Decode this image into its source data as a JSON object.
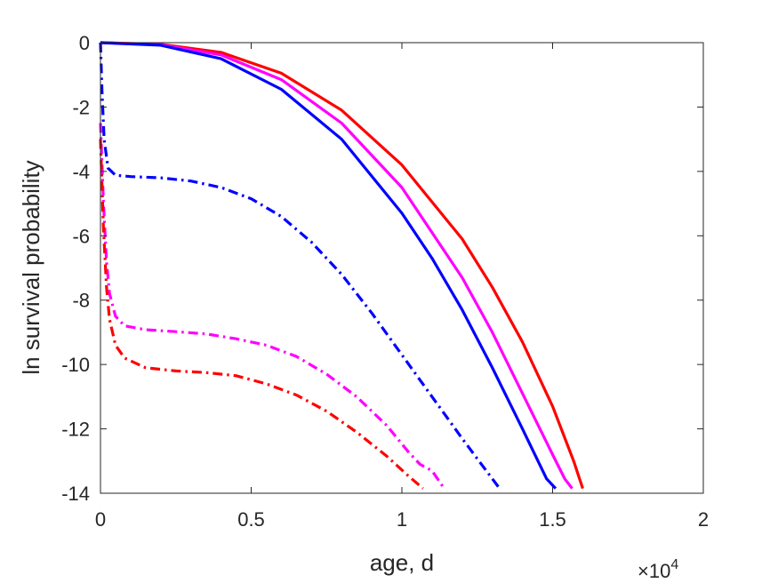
{
  "chart_data": {
    "type": "line",
    "xlabel": "age, d",
    "ylabel": "ln survival probability",
    "x_multiplier": {
      "base": "×10",
      "exponent": "4"
    },
    "xlim": [
      0,
      20000
    ],
    "ylim": [
      -14,
      0
    ],
    "xticks": [
      0,
      5000,
      10000,
      15000,
      20000
    ],
    "xtick_labels": [
      "0",
      "0.5",
      "1",
      "1.5",
      "2"
    ],
    "yticks": [
      0,
      -2,
      -4,
      -6,
      -8,
      -10,
      -12,
      -14
    ],
    "ytick_labels": [
      "0",
      "-2",
      "-4",
      "-6",
      "-8",
      "-10",
      "-12",
      "-14"
    ],
    "grid": false,
    "legend": "none",
    "series": [
      {
        "color": "#ff0000",
        "style": "solid",
        "points": [
          [
            0,
            0
          ],
          [
            2000,
            -0.05
          ],
          [
            4000,
            -0.3
          ],
          [
            6000,
            -0.95
          ],
          [
            8000,
            -2.1
          ],
          [
            10000,
            -3.8
          ],
          [
            12000,
            -6.1
          ],
          [
            13000,
            -7.6
          ],
          [
            14000,
            -9.3
          ],
          [
            15000,
            -11.3
          ],
          [
            15700,
            -13.0
          ],
          [
            16000,
            -13.85
          ]
        ]
      },
      {
        "color": "#ff00ff",
        "style": "solid",
        "points": [
          [
            0,
            0
          ],
          [
            2000,
            -0.06
          ],
          [
            4000,
            -0.38
          ],
          [
            6000,
            -1.15
          ],
          [
            8000,
            -2.5
          ],
          [
            10000,
            -4.5
          ],
          [
            12000,
            -7.3
          ],
          [
            13000,
            -9.0
          ],
          [
            14000,
            -10.9
          ],
          [
            15000,
            -12.8
          ],
          [
            15400,
            -13.55
          ],
          [
            15650,
            -13.85
          ]
        ]
      },
      {
        "color": "#0000ff",
        "style": "solid",
        "points": [
          [
            0,
            0
          ],
          [
            2000,
            -0.08
          ],
          [
            4000,
            -0.5
          ],
          [
            6000,
            -1.45
          ],
          [
            8000,
            -3.0
          ],
          [
            10000,
            -5.3
          ],
          [
            11000,
            -6.7
          ],
          [
            12000,
            -8.3
          ],
          [
            13000,
            -10.1
          ],
          [
            14000,
            -12.0
          ],
          [
            14800,
            -13.55
          ],
          [
            15100,
            -13.85
          ]
        ]
      },
      {
        "color": "#0000ff",
        "style": "dashdot",
        "points": [
          [
            0,
            0
          ],
          [
            50,
            -1.5
          ],
          [
            120,
            -3.0
          ],
          [
            250,
            -3.9
          ],
          [
            500,
            -4.12
          ],
          [
            1000,
            -4.16
          ],
          [
            2000,
            -4.2
          ],
          [
            3000,
            -4.3
          ],
          [
            4000,
            -4.5
          ],
          [
            5000,
            -4.85
          ],
          [
            6000,
            -5.4
          ],
          [
            7000,
            -6.2
          ],
          [
            8000,
            -7.2
          ],
          [
            9000,
            -8.4
          ],
          [
            10000,
            -9.7
          ],
          [
            11000,
            -11.0
          ],
          [
            12000,
            -12.3
          ],
          [
            12800,
            -13.3
          ],
          [
            13200,
            -13.8
          ]
        ]
      },
      {
        "color": "#ff00ff",
        "style": "dashdot",
        "points": [
          [
            0,
            -2.5
          ],
          [
            100,
            -5.0
          ],
          [
            200,
            -6.8
          ],
          [
            300,
            -7.8
          ],
          [
            500,
            -8.5
          ],
          [
            800,
            -8.8
          ],
          [
            1500,
            -8.92
          ],
          [
            2500,
            -8.98
          ],
          [
            3500,
            -9.05
          ],
          [
            4500,
            -9.2
          ],
          [
            5500,
            -9.4
          ],
          [
            6500,
            -9.75
          ],
          [
            7500,
            -10.3
          ],
          [
            8500,
            -11.0
          ],
          [
            9500,
            -11.9
          ],
          [
            10200,
            -12.7
          ],
          [
            10600,
            -13.1
          ],
          [
            11000,
            -13.3
          ],
          [
            11400,
            -13.85
          ]
        ]
      },
      {
        "color": "#ff0000",
        "style": "dashdot",
        "points": [
          [
            0,
            -3.0
          ],
          [
            100,
            -5.8
          ],
          [
            200,
            -7.6
          ],
          [
            300,
            -8.6
          ],
          [
            500,
            -9.4
          ],
          [
            800,
            -9.8
          ],
          [
            1500,
            -10.1
          ],
          [
            2500,
            -10.2
          ],
          [
            3500,
            -10.25
          ],
          [
            4500,
            -10.35
          ],
          [
            5500,
            -10.6
          ],
          [
            6500,
            -10.95
          ],
          [
            7500,
            -11.45
          ],
          [
            8500,
            -12.1
          ],
          [
            9500,
            -12.85
          ],
          [
            10200,
            -13.45
          ],
          [
            10700,
            -13.85
          ]
        ]
      }
    ]
  }
}
